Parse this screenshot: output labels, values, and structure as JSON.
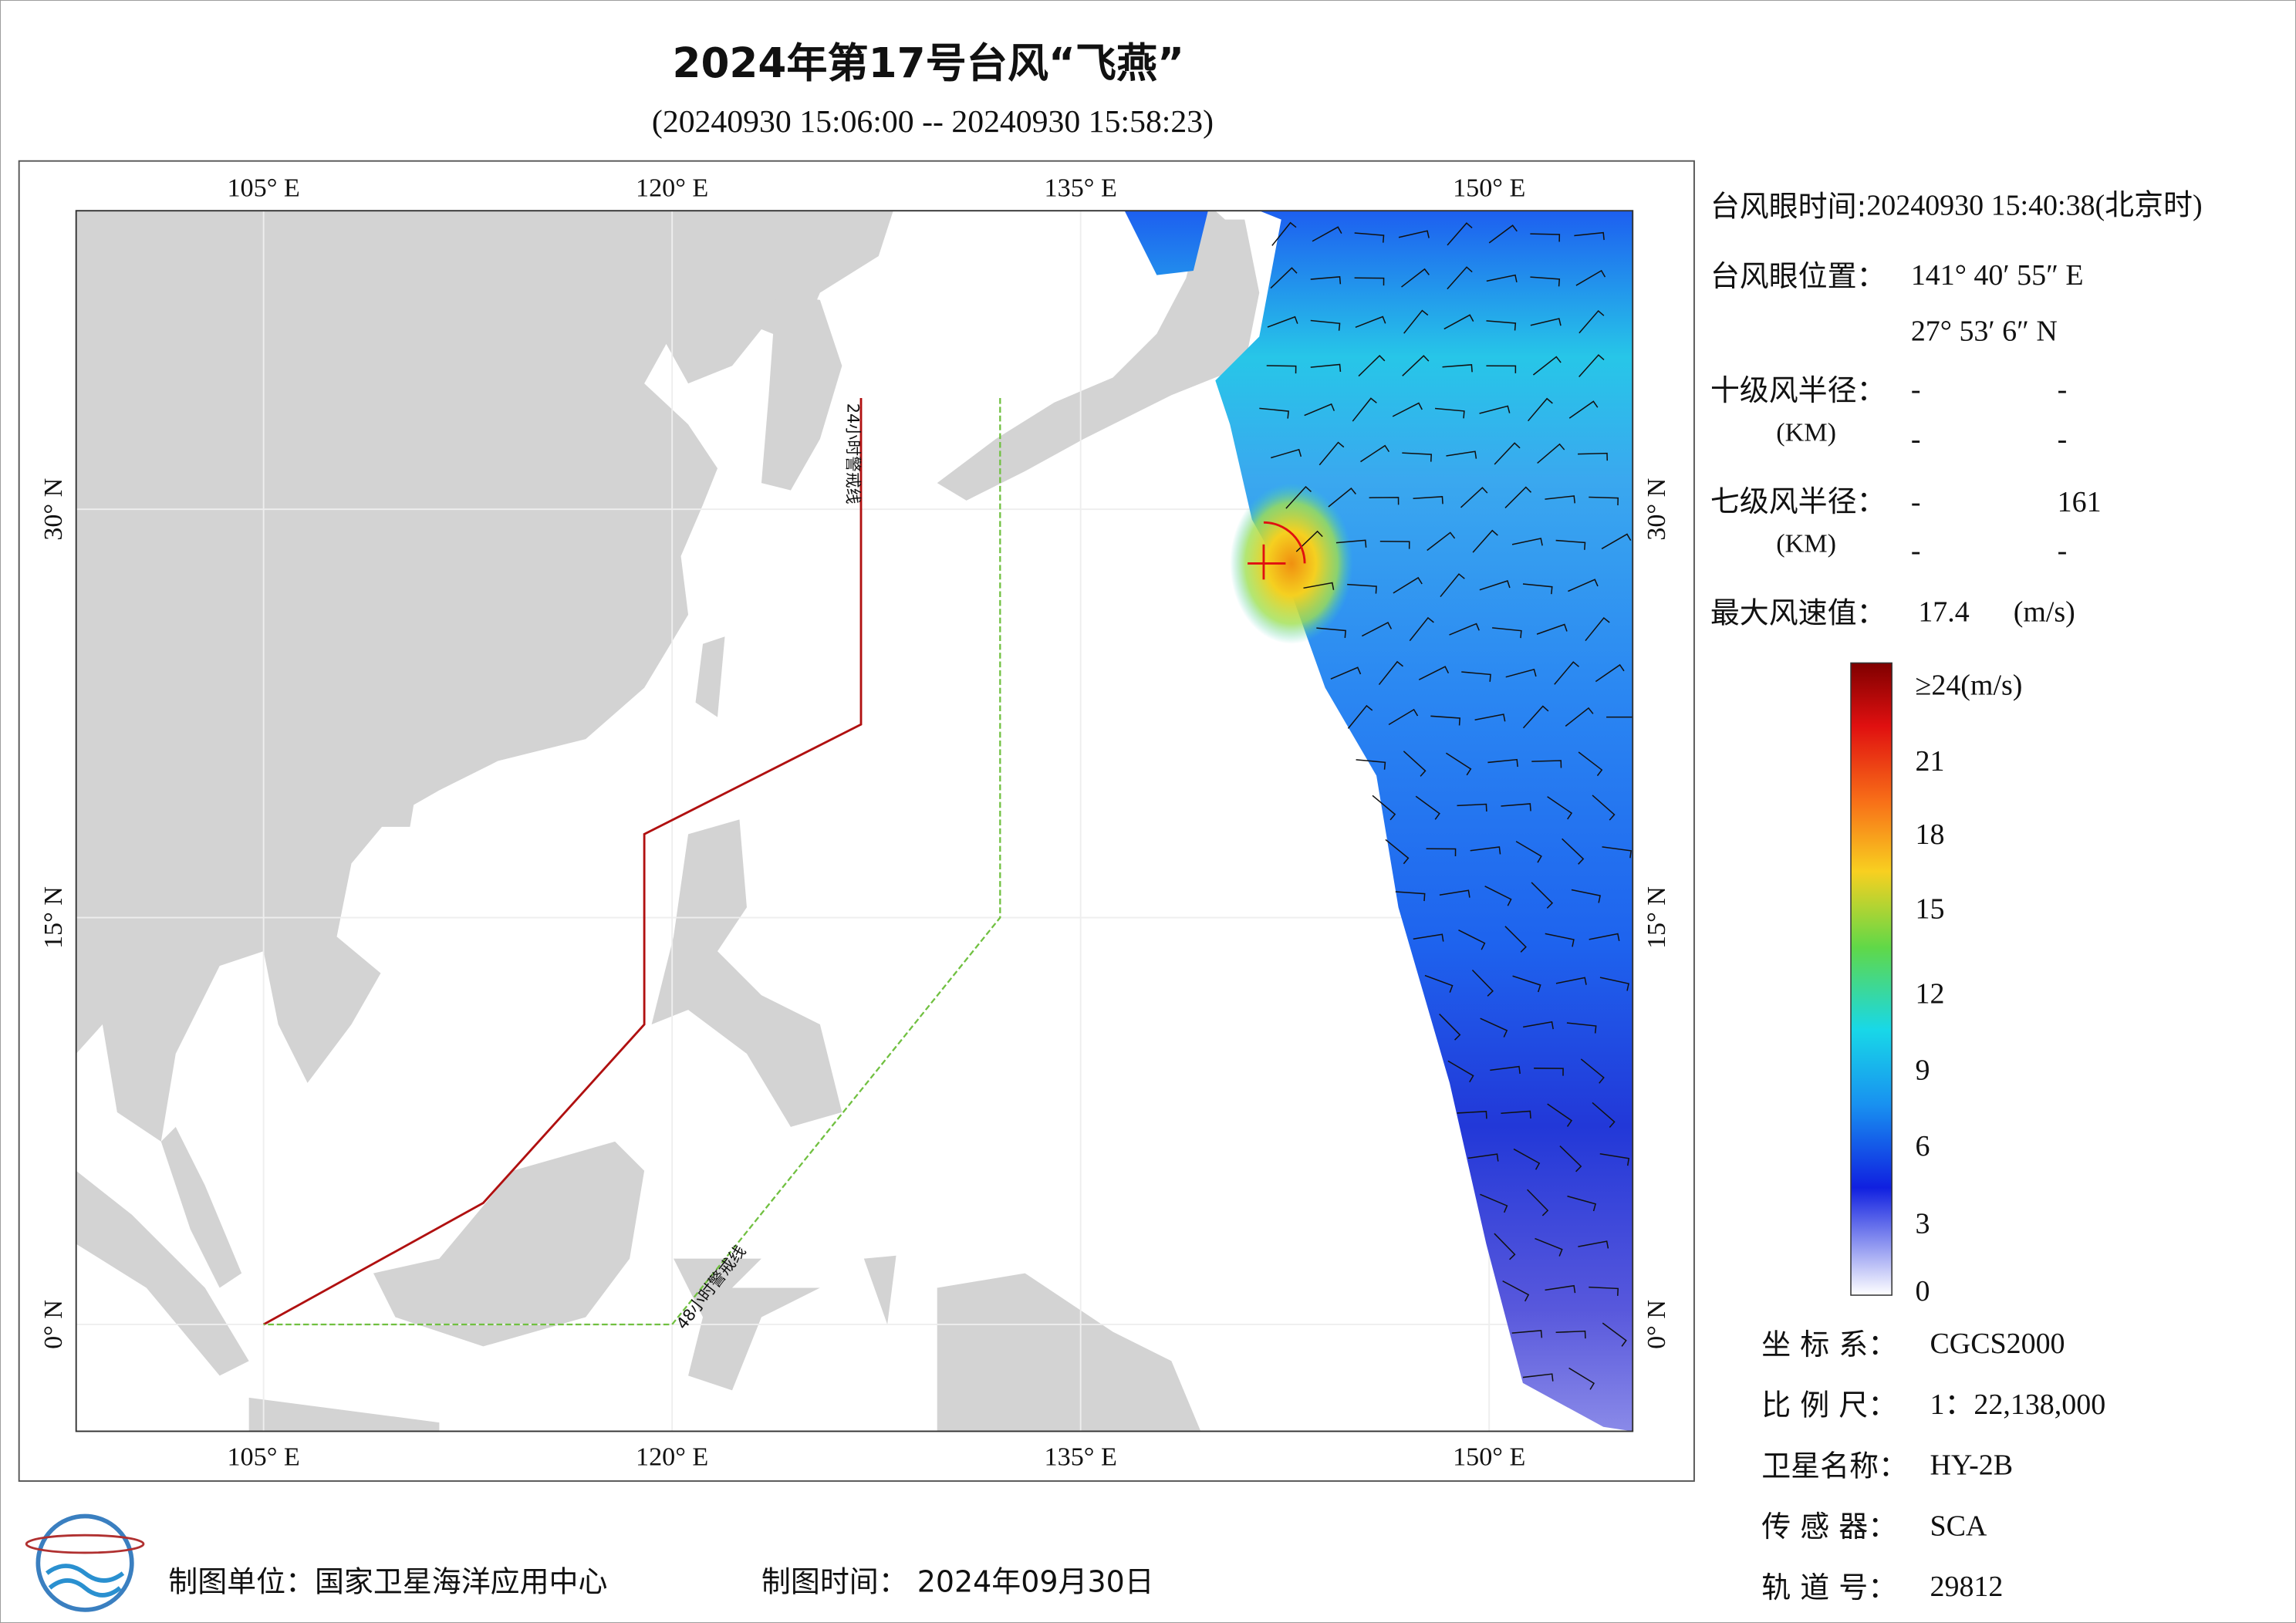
{
  "header": {
    "title": "2024年第17号台风“飞燕”",
    "subtitle": "(20240930 15:06:00 -- 20240930 15:58:23)"
  },
  "map": {
    "lon_labels": [
      "105° E",
      "120° E",
      "135° E",
      "150° E"
    ],
    "lat_labels": [
      "0° N",
      "15° N",
      "30° N"
    ],
    "warning_lines": [
      "24小时警戒线",
      "48小时警戒线"
    ]
  },
  "info": {
    "eye_time": {
      "label": "台风眼时间:",
      "value": "20240930 15:40:38(北京时)"
    },
    "eye_position": {
      "label": "台风眼位置：",
      "lon": "141° 40′ 55″ E",
      "lat": "27° 53′ 6″ N"
    },
    "r10": {
      "label": "十级风半径：",
      "unit": "(KM)",
      "values": [
        "-",
        "-",
        "-",
        "-"
      ]
    },
    "r7": {
      "label": "七级风半径：",
      "unit": "(KM)",
      "values": [
        "-",
        "161",
        "-",
        "-"
      ]
    },
    "max_wind": {
      "label": "最大风速值：",
      "value": "17.4",
      "unit": "(m/s)"
    }
  },
  "colorbar": {
    "labels": [
      "≥24(m/s)",
      "21",
      "18",
      "15",
      "12",
      "9",
      "6",
      "3",
      "0"
    ]
  },
  "meta": [
    {
      "label": "坐 标 系：",
      "value": "CGCS2000"
    },
    {
      "label": "比 例 尺：",
      "value": "1：22,138,000"
    },
    {
      "label": "卫星名称：",
      "value": "HY-2B"
    },
    {
      "label": "传 感 器：",
      "value": "SCA"
    },
    {
      "label": "轨 道 号：",
      "value": "29812"
    }
  ],
  "footer": {
    "producer": "制图单位：国家卫星海洋应用中心",
    "date": "制图时间：  2024年09月30日"
  }
}
